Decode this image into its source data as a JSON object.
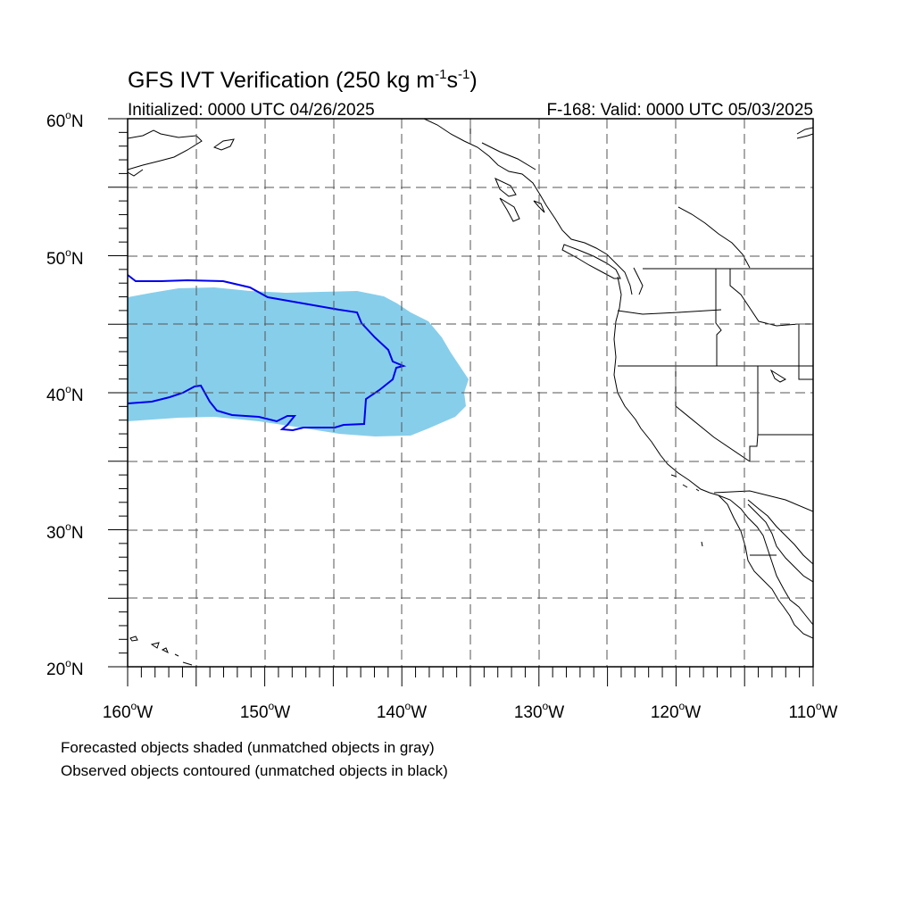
{
  "title": {
    "main": "GFS IVT Verification (250 kg m",
    "sup1": "-1",
    "mid": "s",
    "sup2": "-1",
    "end": ")"
  },
  "subtitle_left": "Initialized: 0000 UTC 04/26/2025",
  "subtitle_right": "F-168: Valid: 0000 UTC 05/03/2025",
  "lat_labels": [
    "60",
    "50",
    "40",
    "30",
    "20"
  ],
  "lat_suffix": "N",
  "lon_labels": [
    "160",
    "150",
    "140",
    "130",
    "120",
    "110"
  ],
  "lon_suffix": "W",
  "degree_symbol": "o",
  "legend": {
    "line1": "Forecasted objects shaded (unmatched objects in gray)",
    "line2": "Observed objects contoured (unmatched objects in black)"
  },
  "map_extent": {
    "lon_min": -160,
    "lon_max": -110,
    "lat_min": 20,
    "lat_max": 60
  },
  "colors": {
    "forecast_shade": "#87ceeb",
    "observed_contour": "#0000ee",
    "coastline": "#000000",
    "gridline": "#555555"
  }
}
